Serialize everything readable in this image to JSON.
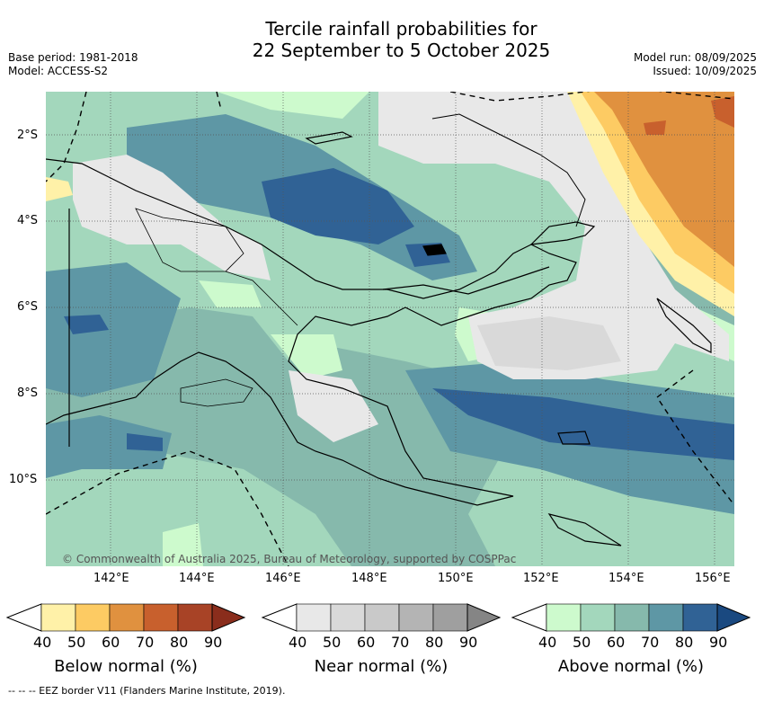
{
  "title_line1": "Tercile rainfall probabilities for",
  "title_line2": "22 September to 5 October 2025",
  "meta": {
    "base_period": "Base period: 1981-2018",
    "model": "Model: ACCESS-S2",
    "model_run": "Model run: 08/09/2025",
    "issued": "Issued: 10/09/2025"
  },
  "map": {
    "lat_labels": [
      "2°S",
      "4°S",
      "6°S",
      "8°S",
      "10°S"
    ],
    "lon_labels": [
      "142°E",
      "144°E",
      "146°E",
      "148°E",
      "150°E",
      "152°E",
      "154°E",
      "156°E"
    ],
    "copyright": "© Commonwealth of Australia 2025, Bureau of Meteorology, supported by COSPPac"
  },
  "colorbars": [
    {
      "label": "Below normal (%)",
      "ticks": [
        "40",
        "50",
        "60",
        "70",
        "80",
        "90"
      ],
      "colors": [
        "#fff1a8",
        "#fdcb63",
        "#e0913f",
        "#c8602d",
        "#a84326",
        "#8a2d1c"
      ]
    },
    {
      "label": "Near normal (%)",
      "ticks": [
        "40",
        "50",
        "60",
        "70",
        "80",
        "90"
      ],
      "colors": [
        "#e8e8e8",
        "#d9d9d9",
        "#c9c9c9",
        "#b4b4b4",
        "#9f9f9f",
        "#858585"
      ]
    },
    {
      "label": "Above normal (%)",
      "ticks": [
        "40",
        "50",
        "60",
        "70",
        "80",
        "90"
      ],
      "colors": [
        "#cdfacd",
        "#a3d7bc",
        "#86b9ac",
        "#5e97a5",
        "#306295",
        "#1a4980"
      ]
    }
  ],
  "footer": "--  --  -- EEZ border V11 (Flanders Marine Institute, 2019)."
}
